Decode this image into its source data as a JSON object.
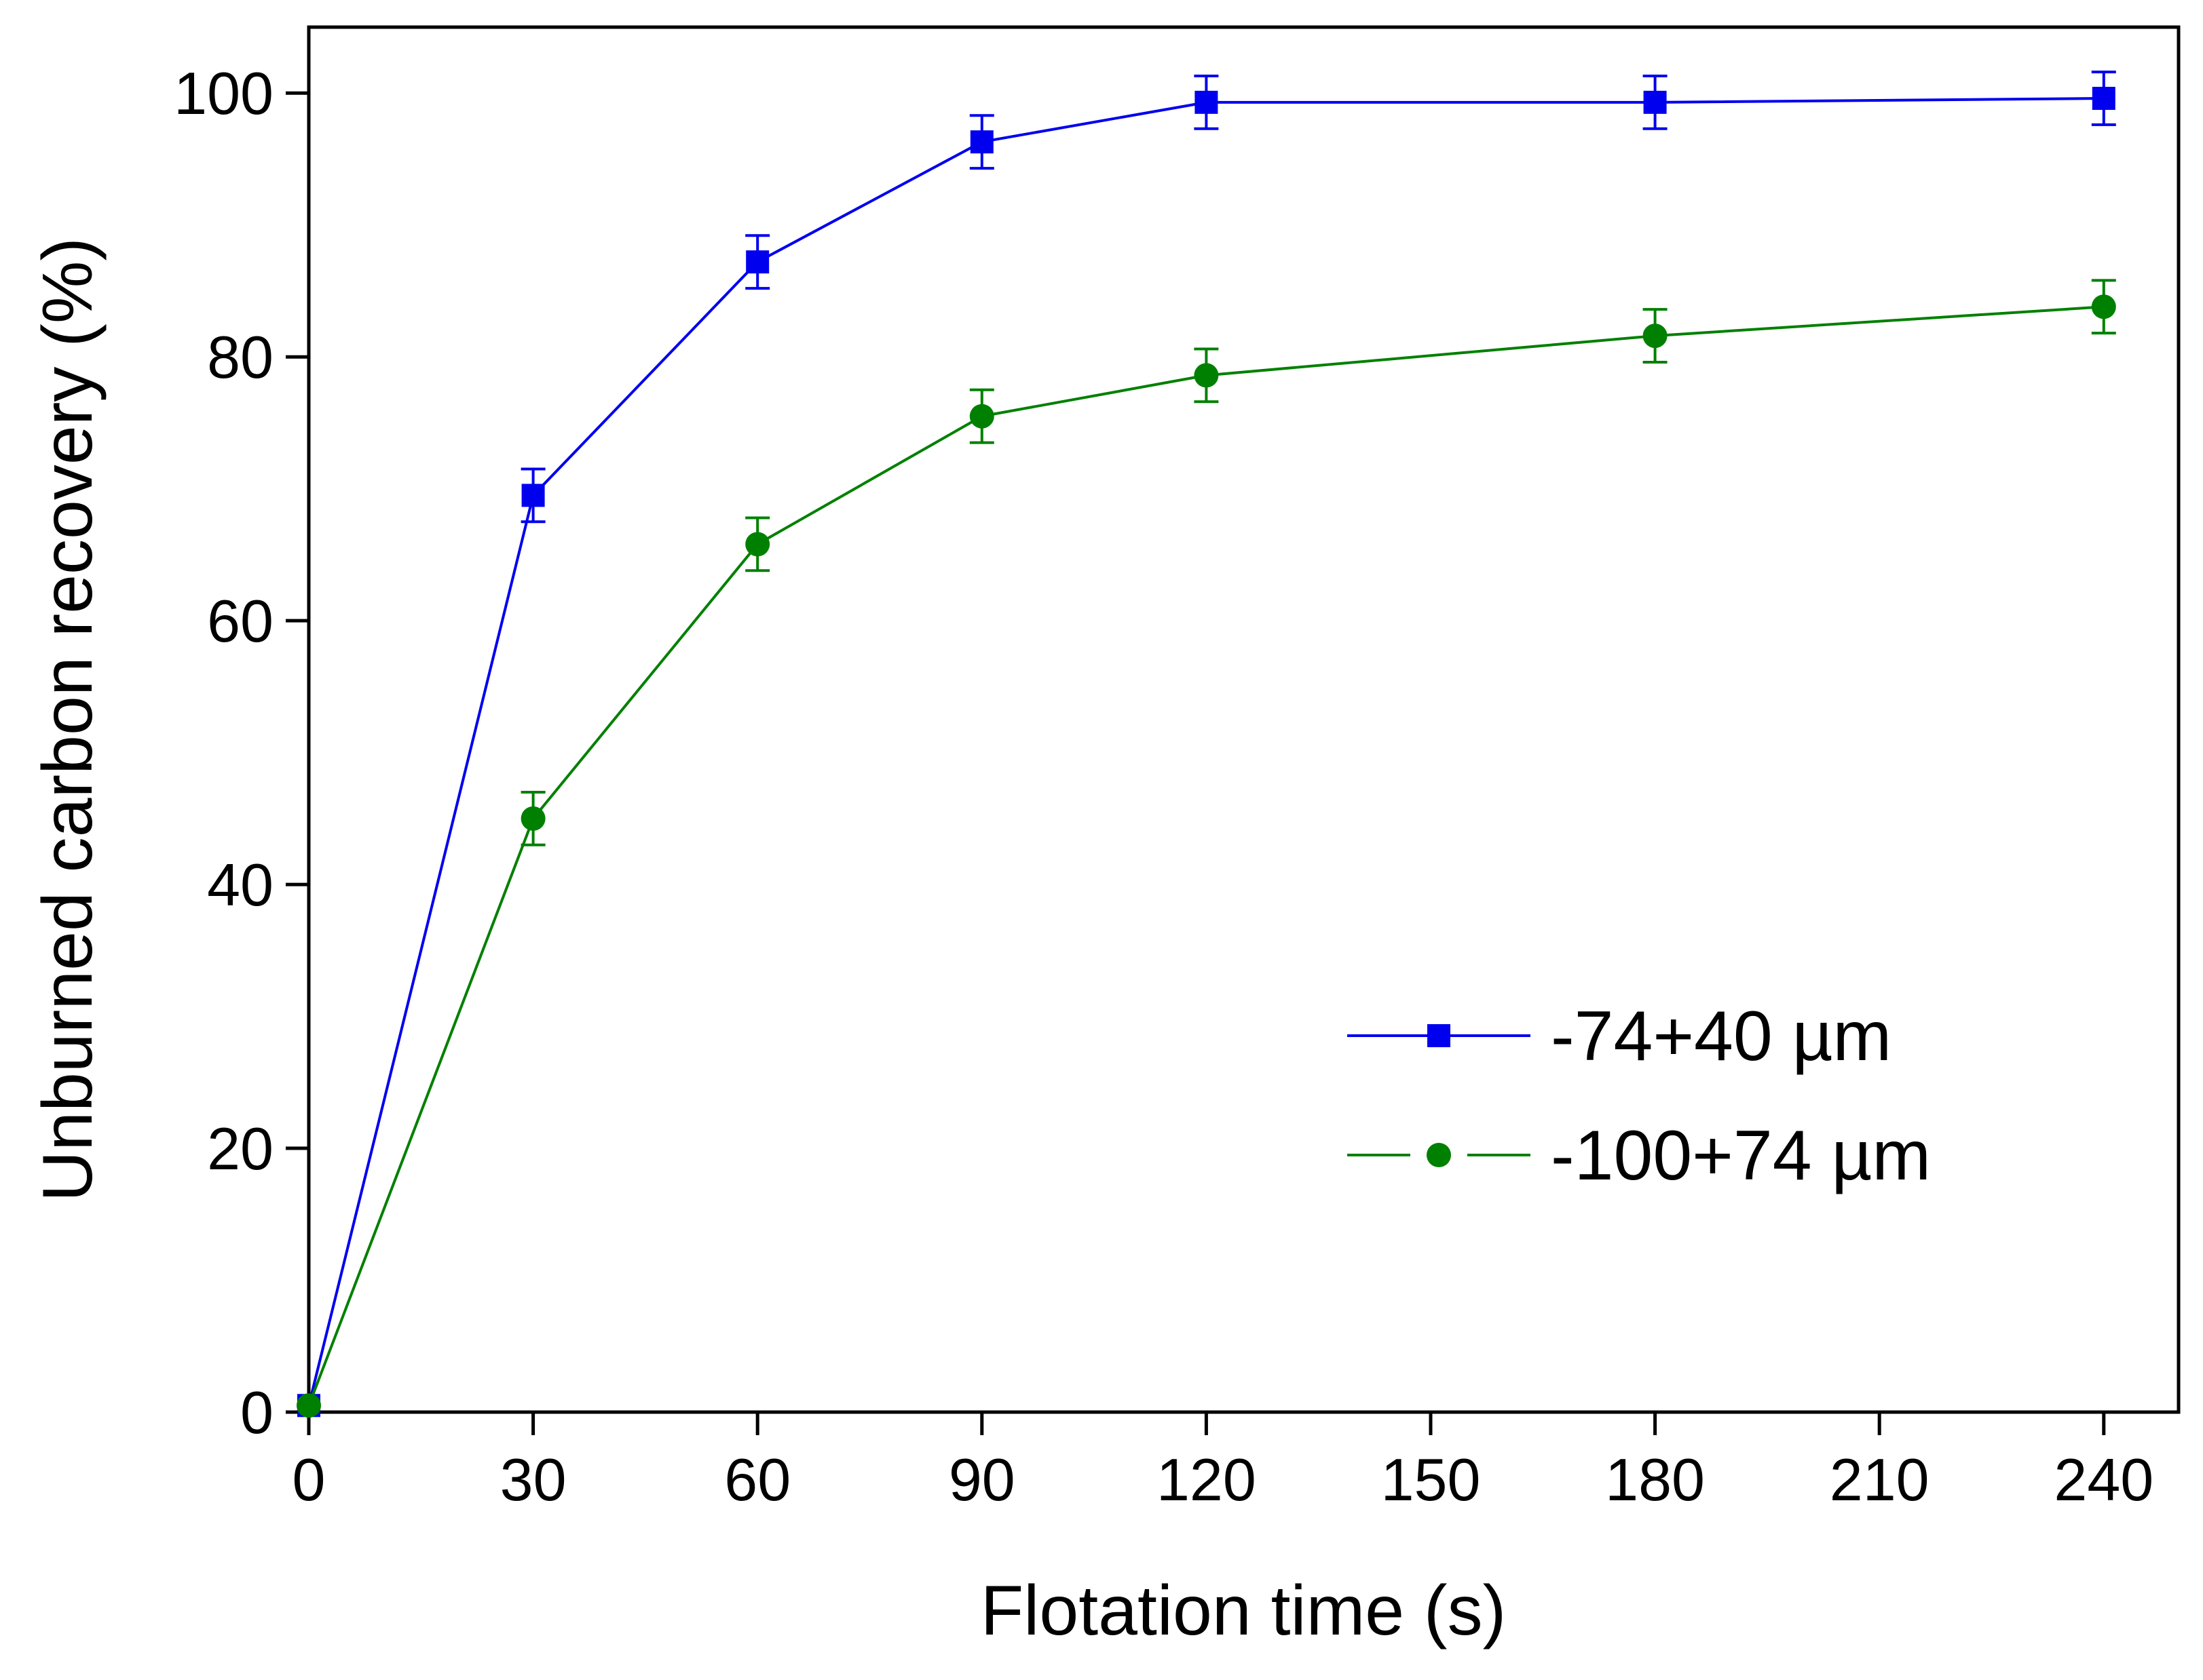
{
  "chart_data": {
    "type": "line",
    "title": "",
    "xlabel": "Flotation time (s)",
    "ylabel": "Unburned carbon recovery (%)",
    "xlim": [
      0,
      250
    ],
    "ylim": [
      0,
      105
    ],
    "xticks": [
      0,
      30,
      60,
      90,
      120,
      150,
      180,
      210,
      240
    ],
    "yticks": [
      0,
      20,
      40,
      60,
      80,
      100
    ],
    "grid": false,
    "legend_position": "lower-right",
    "series": [
      {
        "name": "-74+40 µm",
        "color": "#0000ee",
        "marker": "square",
        "x": [
          0,
          30,
          60,
          90,
          120,
          180,
          240
        ],
        "y": [
          0.5,
          69.5,
          87.2,
          96.3,
          99.3,
          99.3,
          99.6
        ],
        "error": [
          0,
          2.0,
          2.0,
          2.0,
          2.0,
          2.0,
          2.0
        ]
      },
      {
        "name": "-100+74 µm",
        "color": "#008000",
        "marker": "circle",
        "x": [
          0,
          30,
          60,
          90,
          120,
          180,
          240
        ],
        "y": [
          0.5,
          45.0,
          65.8,
          75.5,
          78.6,
          81.6,
          83.8
        ],
        "error": [
          0,
          2.0,
          2.0,
          2.0,
          2.0,
          2.0,
          2.0
        ]
      }
    ]
  }
}
